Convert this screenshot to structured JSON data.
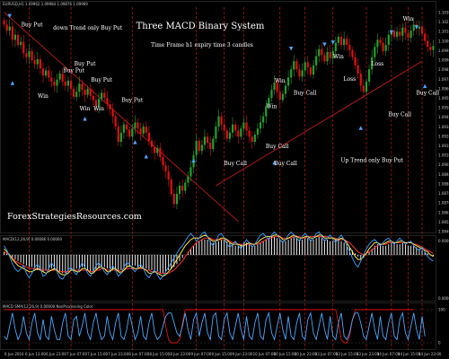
{
  "chart_data": {
    "type": "candlestick",
    "title": "Three MACD Binary System",
    "subtitle": "Time Frame h1 expiry time 3 candles",
    "watermark": "ForexStrategiesResources.com",
    "header_text": "EURUSD,H1  1.09962 1.09984 1.09876 1.09969",
    "colors": {
      "background": "#000000",
      "bull": "#22a22c",
      "bear": "#e01010",
      "trendline": "#b01818",
      "vline": "#c01818",
      "macd_hist": "#ffffff",
      "macd_signal_blue": "#3aa0ff",
      "macd_signal_yellow": "#ffe640",
      "macd_signal_red": "#ff3030",
      "osc_red": "#e01010",
      "osc_blue": "#4aa8ff",
      "arrow": "#4da6ff"
    },
    "price_axis": {
      "ylim": [
        1.0815,
        1.1035
      ],
      "ticks": [
        "1.10305",
        "1.10215",
        "1.10140",
        "1.10060",
        "1.09980",
        "1.09900",
        "1.09820",
        "1.09740",
        "1.09660",
        "1.09580",
        "1.09500",
        "1.09420",
        "1.09340",
        "1.09260",
        "1.09180",
        "1.09100",
        "1.09020",
        "1.08940",
        "1.08860",
        "1.08780",
        "1.08700",
        "1.08620",
        "1.08540",
        "1.08460"
      ]
    },
    "time_axis": [
      "6 Jun 2016",
      "6 Jun 13:00",
      "6 Jun 23:00",
      "7 Jun 07:00",
      "7 Jun 15:00",
      "7 Jun 23:00",
      "8 Jun 07:00",
      "8 Jun 15:00",
      "8 Jun 23:00",
      "9 Jun 07:00",
      "9 Jun 15:00",
      "9 Jun 23:00",
      "10 Jun 07:00",
      "10 Jun 15:00",
      "10 Jun 23:00",
      "13 Jun 07:00",
      "13 Jun 15:00",
      "13 Jun 23:00",
      "14 Jun 07:00",
      "14 Jun 15:00",
      "14 Jun 23:00"
    ],
    "closes": [
      1.1018,
      1.1012,
      1.1016,
      1.1003,
      1.1008,
      1.0998,
      1.1001,
      1.099,
      1.0986,
      1.0992,
      1.0983,
      1.0979,
      1.0984,
      1.0975,
      1.0968,
      1.0973,
      1.0966,
      1.0962,
      1.0958,
      1.0964,
      1.097,
      1.0962,
      1.0958,
      1.0963,
      1.0955,
      1.0947,
      1.0952,
      1.096,
      1.0954,
      1.0949,
      1.0955,
      1.0948,
      1.0944,
      1.0938,
      1.0945,
      1.0951,
      1.0946,
      1.094,
      1.0935,
      1.0928,
      1.0918,
      1.0903,
      1.0912,
      1.092,
      1.0915,
      1.0908,
      1.0916,
      1.0922,
      1.0916,
      1.0911,
      1.0918,
      1.0912,
      1.0904,
      1.0898,
      1.0892,
      1.0897,
      1.0888,
      1.088,
      1.0874,
      1.0866,
      1.0852,
      1.0842,
      1.0852,
      1.086,
      1.0855,
      1.0863,
      1.0869,
      1.0878,
      1.089,
      1.0904,
      1.0894,
      1.09,
      1.0908,
      1.0902,
      1.0896,
      1.0906,
      1.0918,
      1.0928,
      1.092,
      1.0914,
      1.0906,
      1.0912,
      1.092,
      1.0914,
      1.0908,
      1.0916,
      1.0922,
      1.0914,
      1.0908,
      1.0903,
      1.091,
      1.0916,
      1.0922,
      1.0928,
      1.0938,
      1.0946,
      1.0954,
      1.0961,
      1.0952,
      1.0944,
      1.095,
      1.0958,
      1.0966,
      1.0974,
      1.0982,
      1.0974,
      1.0967,
      1.0973,
      1.0981,
      1.0976,
      1.0969,
      1.0978,
      1.0987,
      1.0994,
      1.0988,
      1.0982,
      1.0991,
      1.0985,
      1.0992,
      1.1,
      1.1006,
      1.0998,
      1.1004,
      1.0998,
      1.0993,
      1.0986,
      1.0978,
      1.097,
      1.0958,
      1.0952,
      1.0962,
      1.0974,
      1.0986,
      1.0996,
      1.1003,
      1.1,
      1.0992,
      1.0998,
      1.1008,
      1.1012,
      1.1006,
      1.1011,
      1.1007,
      1.1015,
      1.101,
      1.1005,
      1.1012,
      1.1018,
      1.1014,
      1.1016,
      1.1009,
      1.1002,
      1.0996,
      1.0993,
      1.0997
    ],
    "trendlines": [
      {
        "name": "down-trend",
        "from": [
          0,
          1.103
        ],
        "to": [
          84,
          1.0825
        ]
      },
      {
        "name": "up-trend",
        "from": [
          76,
          1.086
        ],
        "to": [
          150,
          1.0982
        ]
      }
    ],
    "vertical_markers": [
      9,
      24,
      46,
      69,
      79,
      86,
      99,
      108,
      118,
      130,
      139,
      145,
      150
    ],
    "annotations": [
      {
        "text": "Buy Put",
        "i": 10,
        "p": 1.1016
      },
      {
        "text": "down Trend only Buy Put",
        "i": 30,
        "p": 1.1013
      },
      {
        "text": "Buy Put",
        "i": 29,
        "p": 1.0978
      },
      {
        "text": "Buy Put",
        "i": 25,
        "p": 1.0971
      },
      {
        "text": "Buy Put",
        "i": 35,
        "p": 1.0962
      },
      {
        "text": "Buy Put",
        "i": 46,
        "p": 1.0942
      },
      {
        "text": "Win",
        "i": 14,
        "p": 1.0946
      },
      {
        "text": "Win",
        "i": 29,
        "p": 1.0934
      },
      {
        "text": "Win",
        "i": 34,
        "p": 1.0934
      },
      {
        "text": "Win",
        "i": 99,
        "p": 1.0961
      },
      {
        "text": "Win",
        "i": 96,
        "p": 1.0936
      },
      {
        "text": "Win",
        "i": 120,
        "p": 1.0985
      },
      {
        "text": "Win",
        "i": 145,
        "p": 1.1022
      },
      {
        "text": "Loss",
        "i": 124,
        "p": 1.0963
      },
      {
        "text": "Loss",
        "i": 134,
        "p": 1.0978
      },
      {
        "text": "Buy Call",
        "i": 108,
        "p": 1.0949
      },
      {
        "text": "Buy Call",
        "i": 98,
        "p": 1.0897
      },
      {
        "text": "Buy Call",
        "i": 83,
        "p": 1.088
      },
      {
        "text": "Buy Call",
        "i": 101,
        "p": 1.088
      },
      {
        "text": "Buy Call",
        "i": 142,
        "p": 1.0928
      },
      {
        "text": "Buy Call",
        "i": 152,
        "p": 1.0949
      },
      {
        "text": "Up Trend only Buy Put",
        "i": 132,
        "p": 1.0883
      }
    ],
    "arrows_down": [
      {
        "i": 2,
        "p": 1.1027
      },
      {
        "i": 103,
        "p": 1.0995
      },
      {
        "i": 115,
        "p": 1.0999
      },
      {
        "i": 118,
        "p": 1.1001
      },
      {
        "i": 139,
        "p": 1.1011
      },
      {
        "i": 148,
        "p": 1.1016
      }
    ],
    "arrows_up": [
      {
        "i": 3,
        "p": 1.096
      },
      {
        "i": 29,
        "p": 1.0925
      },
      {
        "i": 47,
        "p": 1.0902
      },
      {
        "i": 51,
        "p": 1.0888
      },
      {
        "i": 68,
        "p": 1.0884
      },
      {
        "i": 97,
        "p": 1.0882
      },
      {
        "i": 128,
        "p": 1.0916
      },
      {
        "i": 151,
        "p": 1.0957
      }
    ],
    "macd_pane": {
      "header": "MACD(12,26,9)  0.00086  0.00000",
      "ticks": [
        "0.000000",
        "0.000000"
      ],
      "hist": [
        0.2,
        0.1,
        0.0,
        -0.2,
        -0.3,
        -0.4,
        -0.5,
        -0.6,
        -0.7,
        -0.8,
        -0.8,
        -0.9,
        -1.0,
        -1.0,
        -1.1,
        -1.0,
        -1.0,
        -0.9,
        -1.0,
        -1.0,
        -1.1,
        -1.2,
        -1.2,
        -1.1,
        -1.0,
        -1.0,
        -0.9,
        -0.9,
        -0.8,
        -0.9,
        -1.0,
        -1.1,
        -1.1,
        -1.0,
        -0.9,
        -0.8,
        -0.8,
        -0.9,
        -0.9,
        -1.0,
        -1.0,
        -1.1,
        -1.0,
        -0.9,
        -0.8,
        -0.8,
        -0.7,
        -0.7,
        -0.8,
        -0.8,
        -0.9,
        -0.9,
        -1.0,
        -1.0,
        -1.1,
        -1.1,
        -1.2,
        -1.2,
        -1.1,
        -1.0,
        -0.9,
        -0.8,
        -0.6,
        -0.4,
        -0.2,
        0.0,
        0.2,
        0.4,
        0.6,
        0.8,
        0.9,
        1.0,
        1.0,
        1.0,
        0.9,
        0.8,
        0.8,
        0.9,
        1.0,
        1.0,
        0.9,
        0.8,
        0.7,
        0.6,
        0.6,
        0.7,
        0.8,
        0.8,
        0.7,
        0.6,
        0.6,
        0.7,
        0.8,
        0.9,
        1.0,
        1.1,
        1.2,
        1.2,
        1.1,
        1.0,
        0.9,
        0.9,
        1.0,
        1.1,
        1.2,
        1.1,
        1.0,
        1.0,
        1.1,
        1.1,
        1.0,
        1.0,
        1.1,
        1.2,
        1.1,
        1.0,
        1.0,
        0.9,
        0.9,
        1.0,
        1.0,
        0.9,
        0.8,
        0.7,
        0.5,
        0.3,
        0.1,
        -0.1,
        -0.3,
        -0.2,
        0.0,
        0.2,
        0.4,
        0.6,
        0.7,
        0.7,
        0.6,
        0.6,
        0.7,
        0.8,
        0.8,
        0.7,
        0.7,
        0.8,
        0.7,
        0.6,
        0.6,
        0.6,
        0.5,
        0.4,
        0.3,
        0.2,
        0.1,
        0.0,
        -0.1
      ],
      "blue": [
        0.6,
        0.3,
        -0.1,
        -0.6,
        -0.9,
        -1.1,
        -0.9,
        -0.7,
        -1.2,
        -1.5,
        -1.2,
        -0.8,
        -0.6,
        -0.9,
        -1.4,
        -1.3,
        -0.9,
        -0.5,
        -0.8,
        -1.1,
        -1.5,
        -1.6,
        -1.3,
        -1.0,
        -0.8,
        -1.1,
        -1.3,
        -0.9,
        -0.5,
        -0.8,
        -1.2,
        -1.4,
        -1.1,
        -0.7,
        -0.5,
        -0.8,
        -1.1,
        -1.3,
        -1.0,
        -0.7,
        -1.0,
        -1.4,
        -1.2,
        -0.8,
        -0.5,
        -0.6,
        -0.9,
        -1.1,
        -0.8,
        -0.6,
        -0.9,
        -1.3,
        -1.5,
        -1.2,
        -1.0,
        -1.3,
        -1.6,
        -1.4,
        -1.1,
        -0.8,
        -0.5,
        -0.2,
        0.1,
        0.4,
        0.6,
        0.9,
        1.2,
        1.4,
        1.2,
        0.9,
        1.1,
        1.4,
        1.5,
        1.2,
        0.8,
        0.6,
        0.9,
        1.3,
        1.4,
        1.1,
        0.7,
        0.5,
        0.7,
        0.9,
        0.6,
        0.4,
        0.7,
        1.0,
        0.8,
        0.5,
        0.7,
        1.0,
        1.3,
        1.4,
        1.2,
        1.0,
        1.3,
        1.5,
        1.3,
        1.0,
        0.8,
        1.0,
        1.3,
        1.5,
        1.3,
        1.1,
        0.9,
        1.2,
        1.4,
        1.2,
        0.9,
        1.1,
        1.4,
        1.5,
        1.2,
        0.9,
        1.1,
        1.3,
        1.0,
        0.8,
        1.1,
        1.3,
        1.0,
        0.6,
        0.2,
        -0.2,
        -0.6,
        -0.8,
        -0.4,
        0.0,
        0.4,
        0.7,
        0.9,
        1.0,
        0.8,
        0.6,
        0.8,
        1.0,
        1.1,
        0.9,
        0.7,
        0.9,
        1.1,
        0.9,
        0.7,
        0.8,
        0.9,
        0.6,
        0.4,
        0.3,
        0.5,
        0.2,
        -0.1,
        -0.3,
        -0.4
      ],
      "yellow": [
        0.4,
        0.2,
        0.0,
        -0.3,
        -0.5,
        -0.7,
        -0.8,
        -0.9,
        -1.0,
        -1.1,
        -1.1,
        -1.0,
        -0.9,
        -1.0,
        -1.1,
        -1.2,
        -1.1,
        -1.0,
        -0.9,
        -1.0,
        -1.2,
        -1.3,
        -1.3,
        -1.2,
        -1.0,
        -1.0,
        -1.1,
        -1.1,
        -0.9,
        -0.9,
        -1.0,
        -1.2,
        -1.2,
        -1.0,
        -0.8,
        -0.8,
        -0.9,
        -1.1,
        -1.1,
        -0.9,
        -0.9,
        -1.1,
        -1.2,
        -1.0,
        -0.8,
        -0.7,
        -0.8,
        -0.9,
        -0.9,
        -0.8,
        -0.9,
        -1.0,
        -1.2,
        -1.2,
        -1.1,
        -1.2,
        -1.3,
        -1.4,
        -1.3,
        -1.1,
        -0.9,
        -0.6,
        -0.3,
        0.0,
        0.3,
        0.6,
        0.8,
        1.0,
        1.1,
        1.1,
        1.1,
        1.2,
        1.3,
        1.2,
        1.0,
        0.9,
        0.9,
        1.0,
        1.1,
        1.1,
        1.0,
        0.8,
        0.7,
        0.7,
        0.7,
        0.6,
        0.6,
        0.7,
        0.8,
        0.7,
        0.7,
        0.8,
        1.0,
        1.1,
        1.2,
        1.2,
        1.2,
        1.3,
        1.3,
        1.2,
        1.0,
        1.0,
        1.1,
        1.2,
        1.3,
        1.2,
        1.1,
        1.1,
        1.2,
        1.2,
        1.1,
        1.1,
        1.2,
        1.3,
        1.3,
        1.1,
        1.1,
        1.1,
        1.1,
        1.0,
        1.0,
        1.1,
        1.0,
        0.8,
        0.5,
        0.2,
        -0.1,
        -0.3,
        -0.3,
        -0.1,
        0.1,
        0.4,
        0.6,
        0.8,
        0.8,
        0.7,
        0.7,
        0.8,
        0.9,
        0.9,
        0.8,
        0.8,
        0.9,
        0.9,
        0.8,
        0.8,
        0.8,
        0.7,
        0.6,
        0.5,
        0.4,
        0.3,
        0.2,
        0.0,
        -0.1
      ],
      "red": [
        0.2,
        0.1,
        0.0,
        -0.2,
        -0.4,
        -0.5,
        -0.6,
        -0.7,
        -0.8,
        -0.9,
        -0.9,
        -0.9,
        -0.9,
        -0.9,
        -1.0,
        -1.0,
        -1.0,
        -1.0,
        -1.0,
        -1.0,
        -1.1,
        -1.1,
        -1.1,
        -1.1,
        -1.0,
        -1.0,
        -1.0,
        -1.0,
        -1.0,
        -1.0,
        -1.0,
        -1.1,
        -1.1,
        -1.0,
        -1.0,
        -0.9,
        -0.9,
        -1.0,
        -1.0,
        -1.0,
        -1.0,
        -1.0,
        -1.1,
        -1.0,
        -0.9,
        -0.9,
        -0.9,
        -0.9,
        -0.9,
        -0.9,
        -0.9,
        -1.0,
        -1.0,
        -1.1,
        -1.1,
        -1.1,
        -1.2,
        -1.2,
        -1.2,
        -1.2,
        -1.1,
        -1.0,
        -0.8,
        -0.6,
        -0.4,
        -0.1,
        0.1,
        0.4,
        0.6,
        0.8,
        0.9,
        1.0,
        1.1,
        1.1,
        1.1,
        1.0,
        1.0,
        1.0,
        1.0,
        1.0,
        1.0,
        0.9,
        0.8,
        0.8,
        0.7,
        0.7,
        0.7,
        0.7,
        0.7,
        0.7,
        0.7,
        0.7,
        0.8,
        0.9,
        1.0,
        1.1,
        1.1,
        1.2,
        1.2,
        1.2,
        1.1,
        1.1,
        1.1,
        1.1,
        1.2,
        1.2,
        1.2,
        1.1,
        1.1,
        1.2,
        1.2,
        1.2,
        1.2,
        1.2,
        1.2,
        1.2,
        1.2,
        1.1,
        1.1,
        1.1,
        1.0,
        1.0,
        1.0,
        0.9,
        0.8,
        0.6,
        0.4,
        0.2,
        0.1,
        0.0,
        0.1,
        0.2,
        0.3,
        0.5,
        0.6,
        0.7,
        0.7,
        0.7,
        0.8,
        0.8,
        0.8,
        0.8,
        0.8,
        0.8,
        0.8,
        0.8,
        0.8,
        0.7,
        0.7,
        0.6,
        0.5,
        0.4,
        0.3,
        0.2,
        0.1
      ]
    },
    "osc_pane": {
      "header": "MACD SMA(12,26,9)  0.00000  NonProcessing  Color",
      "levels": [
        "100",
        "0"
      ],
      "red": [
        1,
        1,
        1,
        1,
        1,
        1,
        1,
        1,
        1,
        1,
        1,
        1,
        1,
        1,
        1,
        1,
        1,
        1,
        1,
        1,
        1,
        1,
        1,
        1,
        1,
        1,
        1,
        1,
        1,
        1,
        1,
        1,
        1,
        1,
        1,
        1,
        1,
        1,
        1,
        1,
        1,
        1,
        1,
        1,
        1,
        1,
        1,
        1,
        1,
        1,
        1,
        1,
        1,
        1,
        1,
        1,
        1,
        1,
        0.5,
        0.1,
        0.0,
        0.0,
        0.0,
        0.1,
        0.6,
        1,
        1,
        1,
        1,
        1,
        1,
        1,
        1,
        1,
        1,
        1,
        1,
        1,
        1,
        1,
        1,
        1,
        1,
        1,
        1,
        1,
        1,
        1,
        1,
        1,
        1,
        1,
        1,
        1,
        1,
        1,
        1,
        1,
        1,
        1,
        1,
        1,
        1,
        1,
        1,
        1,
        1,
        1,
        1,
        1,
        1,
        1,
        1,
        1,
        1,
        1,
        1,
        1,
        1,
        1,
        0.6,
        0.1,
        0.0,
        0.0,
        0.2,
        0.7,
        1,
        1,
        1,
        1,
        1,
        1,
        1,
        1,
        1,
        1,
        1,
        1,
        1,
        1,
        1,
        1,
        1,
        1,
        1,
        1,
        1,
        1
      ],
      "blue": [
        0.2,
        0.1,
        0.5,
        0.9,
        0.4,
        0.1,
        0.3,
        0.8,
        0.3,
        0.1,
        0.6,
        0.9,
        0.3,
        0.1,
        0.7,
        0.2,
        0.1,
        0.8,
        0.4,
        0.1,
        0.1,
        0.6,
        0.9,
        0.2,
        0.1,
        0.7,
        0.8,
        0.2,
        0.5,
        0.9,
        0.3,
        0.1,
        0.6,
        0.9,
        0.4,
        0.1,
        0.2,
        0.8,
        0.3,
        0.1,
        0.6,
        0.9,
        0.2,
        0.1,
        0.4,
        0.9,
        0.5,
        0.1,
        0.3,
        0.8,
        0.2,
        0.1,
        0.6,
        0.9,
        0.3,
        0.1,
        0.2,
        0.5,
        0.8,
        0.9,
        0.9,
        0.6,
        0.3,
        0.2,
        0.5,
        0.9,
        0.4,
        0.1,
        0.7,
        0.9,
        0.2,
        0.6,
        0.9,
        0.3,
        0.1,
        0.8,
        0.9,
        0.2,
        0.1,
        0.7,
        0.9,
        0.3,
        0.1,
        0.5,
        0.9,
        0.4,
        0.1,
        0.8,
        0.2,
        0.1,
        0.6,
        0.9,
        0.2,
        0.1,
        0.7,
        0.9,
        0.3,
        0.1,
        0.5,
        0.9,
        0.4,
        0.1,
        0.8,
        0.2,
        0.1,
        0.6,
        0.9,
        0.2,
        0.1,
        0.7,
        0.9,
        0.3,
        0.1,
        0.5,
        0.9,
        0.4,
        0.1,
        0.8,
        0.2,
        0.1,
        0.6,
        0.9,
        0.2,
        0.1,
        0.3,
        0.7,
        0.9,
        0.9,
        0.6,
        0.2,
        0.1,
        0.5,
        0.9,
        0.4,
        0.1,
        0.8,
        0.2,
        0.1,
        0.6,
        0.9,
        0.2,
        0.1,
        0.7,
        0.9,
        0.3,
        0.1,
        0.5,
        0.9,
        0.4,
        0.1,
        0.8,
        0.2
      ]
    }
  }
}
